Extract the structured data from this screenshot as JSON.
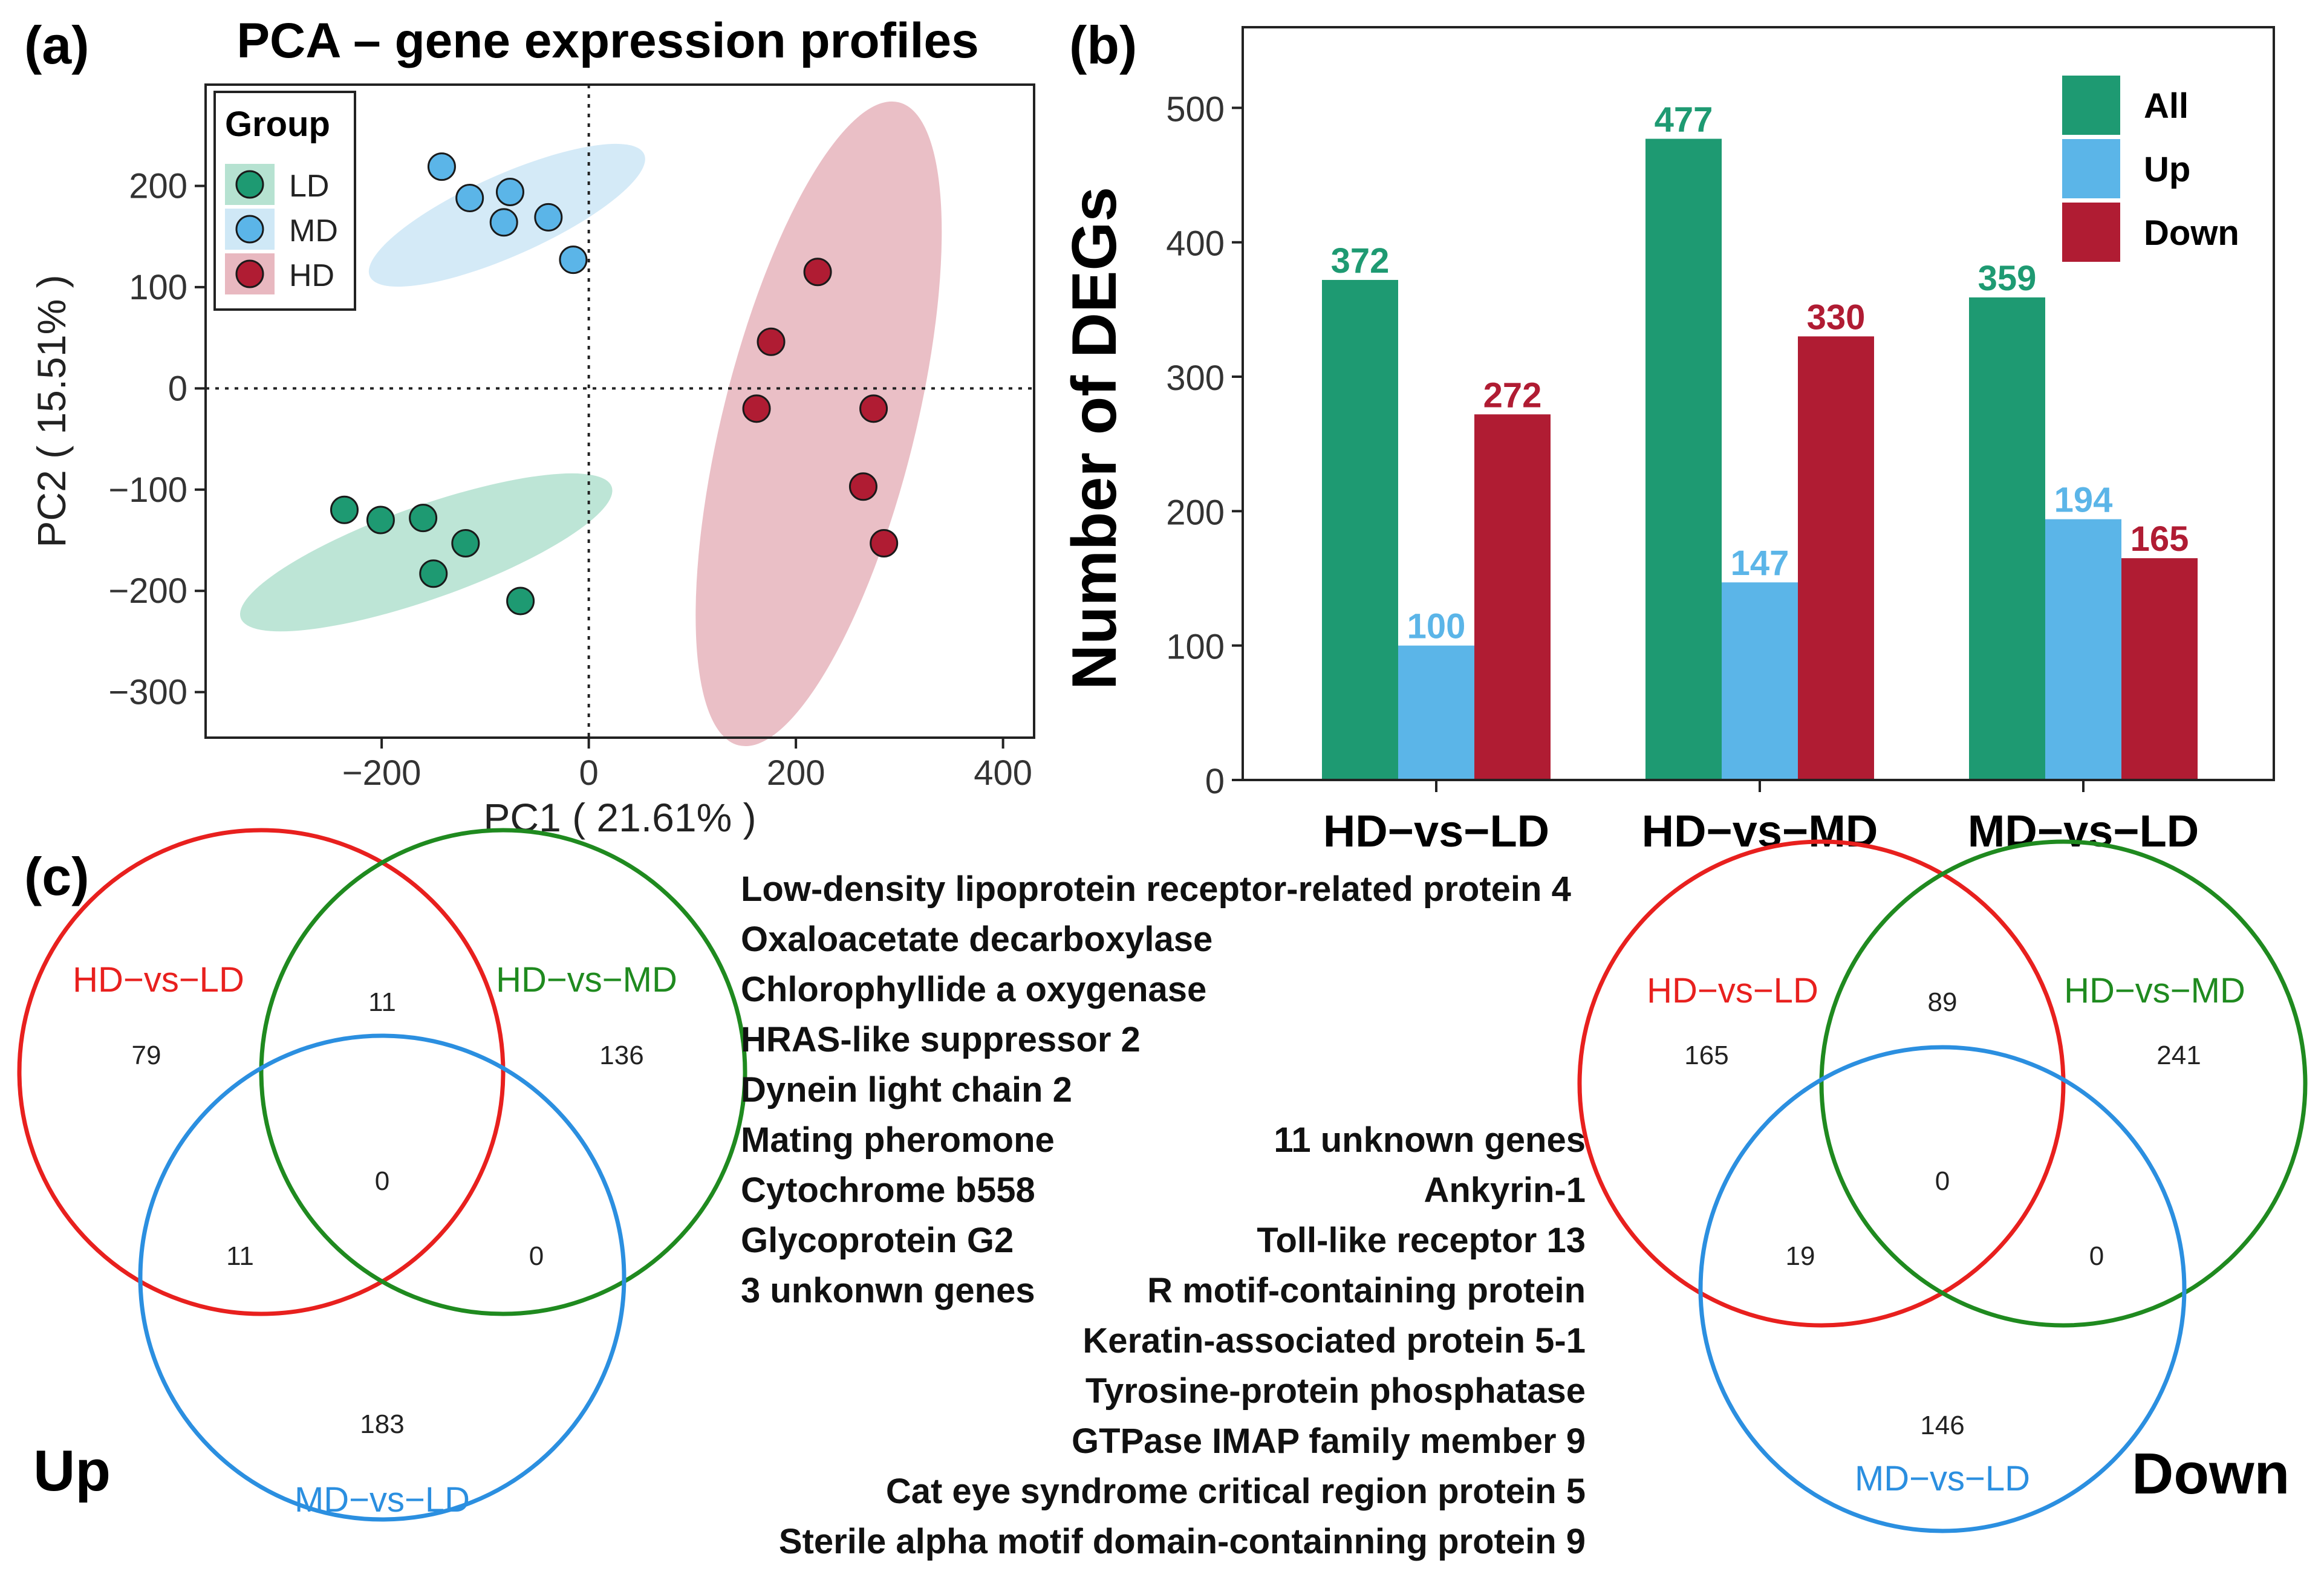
{
  "panels": {
    "a": "(a)",
    "b": "(b)",
    "c": "(c)"
  },
  "colors": {
    "LD": "#1e9a72",
    "MD": "#5bb5e8",
    "HD": "#b01c33",
    "LD_fill": "#b6e2d1",
    "MD_fill": "#cfe8f6",
    "HD_fill": "#e8b8c0",
    "venn_red": "#e8201e",
    "venn_green": "#1f8a1f",
    "venn_blue": "#2b8fe0"
  },
  "chart_data": [
    {
      "type": "scatter",
      "title": "PCA – gene expression profiles",
      "xlabel": "PC1 ( 21.61% )",
      "ylabel": "PC2 ( 15.51% )",
      "xlim": [
        -370,
        430
      ],
      "ylim": [
        -345,
        300
      ],
      "xticks": [
        -200,
        0,
        200,
        400
      ],
      "xtick_labels": [
        "−200",
        "0",
        "200",
        "400"
      ],
      "yticks": [
        200,
        100,
        0,
        -100,
        -200,
        -300
      ],
      "ytick_labels": [
        "200",
        "100",
        "0",
        "−100",
        "−200",
        "−300"
      ],
      "reference_lines": {
        "x": 0,
        "y": 0
      },
      "legend": {
        "title": "Group",
        "position": "top-left",
        "entries": [
          "LD",
          "MD",
          "HD"
        ]
      },
      "series": [
        {
          "name": "LD",
          "points": [
            [
              -236,
              -120
            ],
            [
              -201,
              -130
            ],
            [
              -160,
              -128
            ],
            [
              -119,
              -153
            ],
            [
              -150,
              -183
            ],
            [
              -66,
              -210
            ]
          ],
          "ellipse": {
            "cx": -157,
            "cy": -162,
            "rx": 190,
            "ry": 46,
            "angle_deg": -19.5
          }
        },
        {
          "name": "MD",
          "points": [
            [
              -142,
              219
            ],
            [
              -115,
              188
            ],
            [
              -76,
              194
            ],
            [
              -82,
              164
            ],
            [
              -39,
              169
            ],
            [
              -15,
              127
            ]
          ],
          "ellipse": {
            "cx": -79,
            "cy": 171,
            "rx": 145,
            "ry": 40,
            "angle_deg": -24
          }
        },
        {
          "name": "HD",
          "points": [
            [
              221,
              115
            ],
            [
              176,
              46
            ],
            [
              162,
              -20
            ],
            [
              275,
              -20
            ],
            [
              265,
              -97
            ],
            [
              285,
              -153
            ]
          ],
          "ellipse": {
            "cx": 222,
            "cy": -35,
            "rx": 320,
            "ry": 95,
            "angle_deg": -76
          }
        }
      ]
    },
    {
      "type": "bar",
      "title": "",
      "xlabel": "",
      "ylabel": "Number of DEGs",
      "ylim": [
        0,
        560
      ],
      "yticks": [
        0,
        100,
        200,
        300,
        400,
        500
      ],
      "categories": [
        "HD−vs−LD",
        "HD−vs−MD",
        "MD−vs−LD"
      ],
      "legend": {
        "position": "top-right",
        "entries": [
          "All",
          "Up",
          "Down"
        ]
      },
      "series": [
        {
          "name": "All",
          "values": [
            372,
            477,
            359
          ]
        },
        {
          "name": "Up",
          "values": [
            100,
            147,
            194
          ]
        },
        {
          "name": "Down",
          "values": [
            272,
            330,
            165
          ]
        }
      ]
    }
  ],
  "venn": {
    "up": {
      "title": "Up",
      "sets": [
        "HD−vs−LD",
        "HD−vs−MD",
        "MD−vs−LD"
      ],
      "counts": {
        "a_only": "79",
        "b_only": "136",
        "c_only": "183",
        "ab": "11",
        "ac": "11",
        "bc": "0",
        "abc": "0"
      }
    },
    "down": {
      "title": "Down",
      "sets": [
        "HD−vs−LD",
        "HD−vs−MD",
        "MD−vs−LD"
      ],
      "counts": {
        "a_only": "165",
        "b_only": "241",
        "c_only": "146",
        "ab": "89",
        "ac": "19",
        "bc": "0",
        "abc": "0"
      }
    },
    "genes_left": [
      "Low-density lipoprotein receptor-related protein 4",
      "Oxaloacetate decarboxylase",
      "Chlorophyllide a oxygenase",
      "HRAS-like suppressor 2",
      "Dynein light chain 2",
      "Mating pheromone",
      "Cytochrome b558",
      "Glycoprotein G2",
      "3 unkonwn genes"
    ],
    "genes_right": [
      "11 unknown genes",
      "Ankyrin-1",
      "Toll-like receptor 13",
      "R motif-containing protein",
      "Keratin-associated protein 5-1",
      "Tyrosine-protein phosphatase",
      "GTPase IMAP family member 9",
      "Cat eye syndrome critical region protein 5",
      "Sterile alpha motif domain-containning protein 9"
    ]
  }
}
